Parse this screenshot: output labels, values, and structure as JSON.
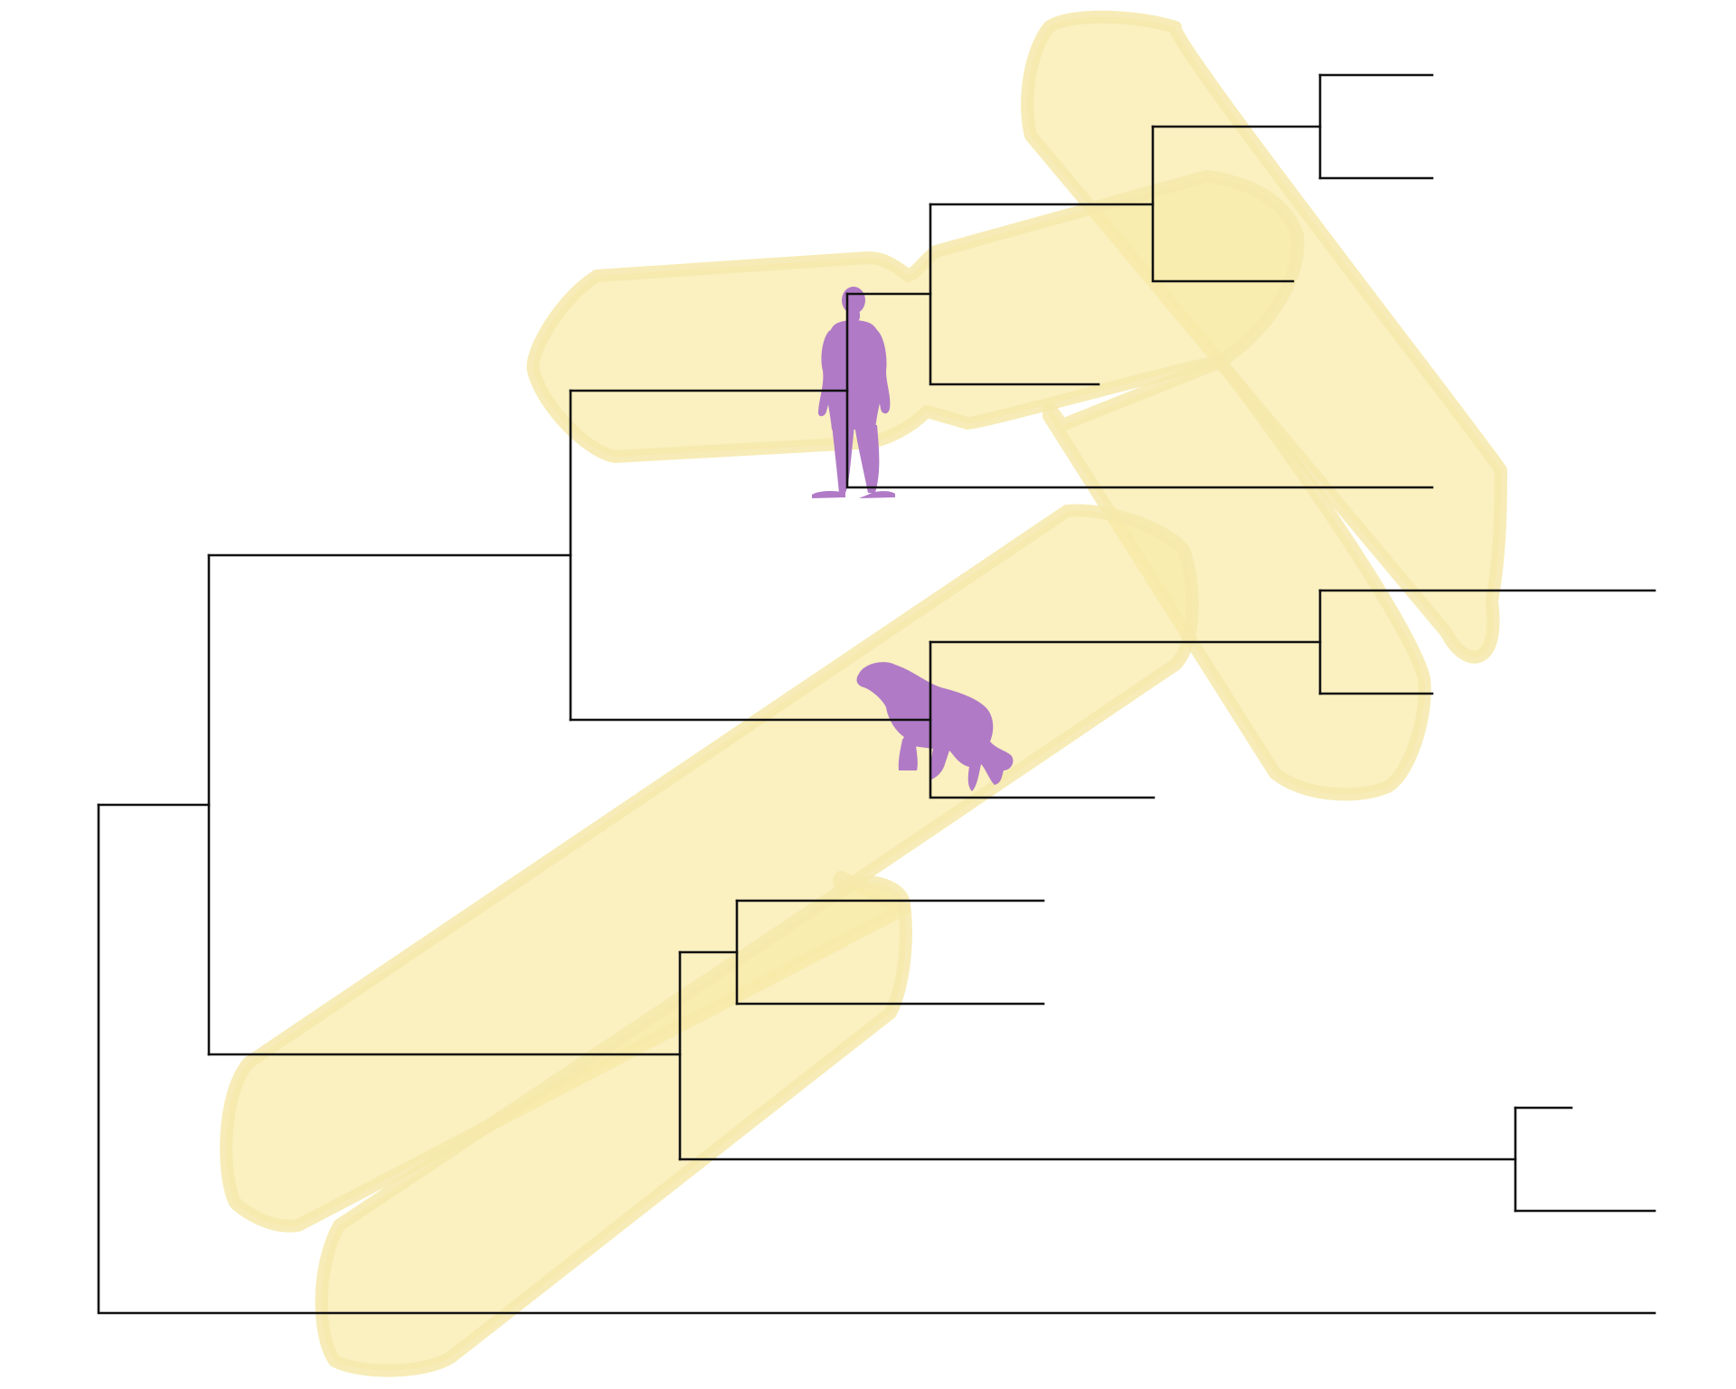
{
  "colors": {
    "background": "#ffffff",
    "highlight_fill": "#f8eaa8",
    "highlight_edge": "#f6e9aa",
    "branch_line": "#111111",
    "silhouette": "#b07ac6",
    "silhouette_dark": "#9e63b7"
  },
  "tree": {
    "leaf_count": 12,
    "highlighted_regions": 5,
    "silhouettes": [
      {
        "name": "human",
        "icon": "human-silhouette-icon"
      },
      {
        "name": "dog",
        "icon": "dog-silhouette-icon"
      }
    ]
  }
}
